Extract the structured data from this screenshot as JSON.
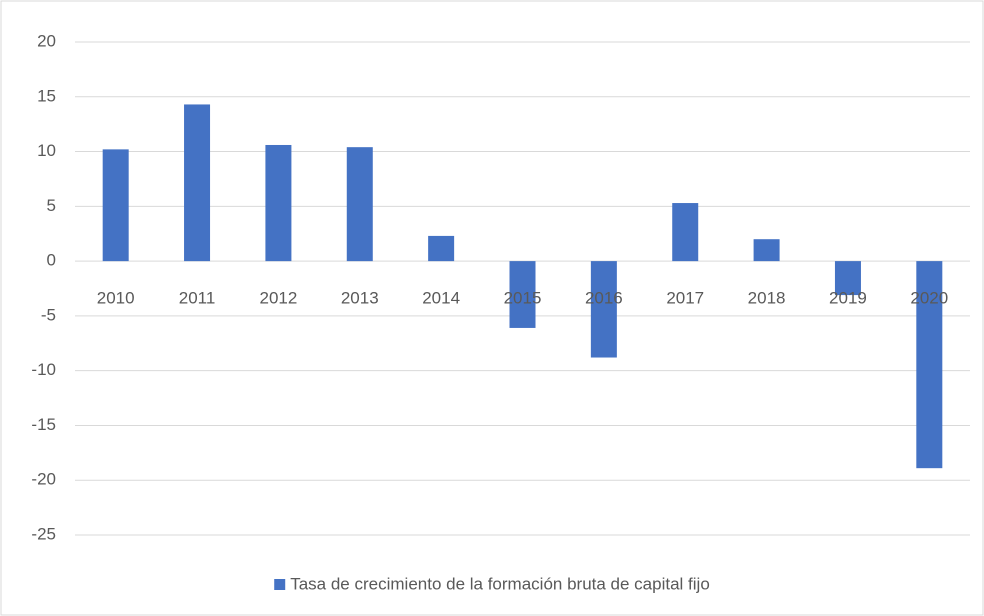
{
  "chart_data": {
    "type": "bar",
    "categories": [
      "2010",
      "2011",
      "2012",
      "2013",
      "2014",
      "2015",
      "2016",
      "2017",
      "2018",
      "2019",
      "2020"
    ],
    "series": [
      {
        "name": "Tasa de crecimiento de la formación bruta de capital fijo",
        "color": "#4472c4",
        "values": [
          10.2,
          14.3,
          10.6,
          10.4,
          2.3,
          -6.1,
          -8.8,
          5.3,
          2.0,
          -3.1,
          -18.9
        ]
      }
    ],
    "ylim": [
      -25,
      20
    ],
    "yticks": [
      -25,
      -20,
      -15,
      -10,
      -5,
      0,
      5,
      10,
      15,
      20
    ],
    "grid": true,
    "legend": "bottom"
  }
}
